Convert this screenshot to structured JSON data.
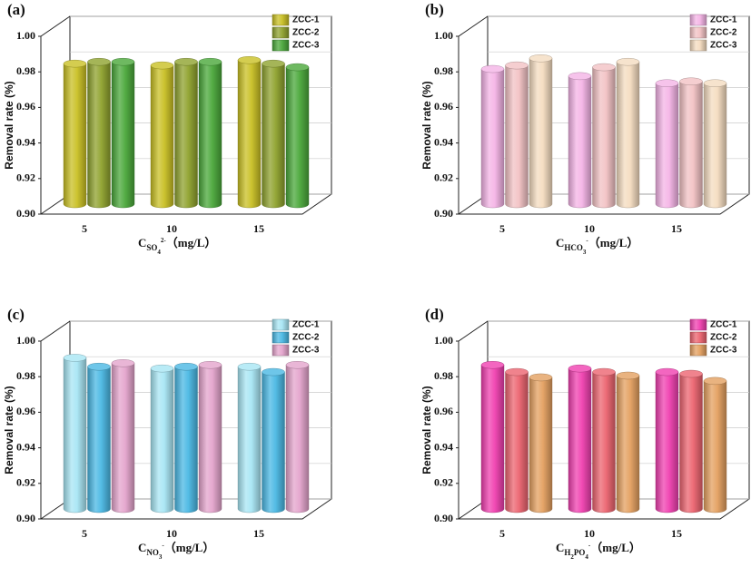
{
  "chart_data": [
    {
      "type": "bar",
      "panel_label": "(a)",
      "y_label": "Removal rate (%)",
      "x_label": [
        {
          "text": "C",
          "role": "base"
        },
        {
          "text": "SO",
          "role": "sub"
        },
        {
          "text": "4",
          "role": "subsub"
        },
        {
          "text": "2-",
          "role": "sup"
        },
        {
          "text": "（mg/L）",
          "role": "base"
        }
      ],
      "categories": [
        "5",
        "10",
        "15"
      ],
      "series": [
        {
          "name": "ZCC-1",
          "color": "#c9c024",
          "values": [
            0.979,
            0.978,
            0.981
          ]
        },
        {
          "name": "ZCC-2",
          "color": "#8fa22e",
          "values": [
            0.98,
            0.98,
            0.979
          ]
        },
        {
          "name": "ZCC-3",
          "color": "#4aa83a",
          "values": [
            0.98,
            0.98,
            0.977
          ]
        }
      ],
      "ylim": [
        0.9,
        1.0
      ],
      "yticks": [
        {
          "value": 0.9,
          "label": "0.90"
        },
        {
          "value": 0.92,
          "label": "0.92"
        },
        {
          "value": 0.94,
          "label": "0.94"
        },
        {
          "value": 0.96,
          "label": "0.96"
        },
        {
          "value": 0.98,
          "label": "0.98"
        },
        {
          "value": 1.0,
          "label": "1.00"
        }
      ],
      "grid": true
    },
    {
      "type": "bar",
      "panel_label": "(b)",
      "y_label": "Removal rate (%)",
      "x_label": [
        {
          "text": "C",
          "role": "base"
        },
        {
          "text": "HCO",
          "role": "sub"
        },
        {
          "text": "3",
          "role": "subsub"
        },
        {
          "text": "-",
          "role": "sup"
        },
        {
          "text": "（mg/L）",
          "role": "base"
        }
      ],
      "categories": [
        "5",
        "10",
        "15"
      ],
      "series": [
        {
          "name": "ZCC-1",
          "color": "#f4b4e6",
          "values": [
            0.976,
            0.972,
            0.968
          ]
        },
        {
          "name": "ZCC-2",
          "color": "#f2c2c4",
          "values": [
            0.978,
            0.977,
            0.969
          ]
        },
        {
          "name": "ZCC-3",
          "color": "#f4dcc0",
          "values": [
            0.982,
            0.98,
            0.968
          ]
        }
      ],
      "ylim": [
        0.9,
        1.0
      ],
      "yticks": [
        {
          "value": 0.9,
          "label": "0.90"
        },
        {
          "value": 0.92,
          "label": "0.92"
        },
        {
          "value": 0.94,
          "label": "0.94"
        },
        {
          "value": 0.96,
          "label": "0.96"
        },
        {
          "value": 0.98,
          "label": "0.98"
        },
        {
          "value": 1.0,
          "label": "1.00"
        }
      ],
      "grid": true
    },
    {
      "type": "bar",
      "panel_label": "(c)",
      "y_label": "Removal rate (%)",
      "x_label": [
        {
          "text": "C",
          "role": "base"
        },
        {
          "text": "NO",
          "role": "sub"
        },
        {
          "text": "3",
          "role": "subsub"
        },
        {
          "text": "-",
          "role": "sup"
        },
        {
          "text": "（mg/L）",
          "role": "base"
        }
      ],
      "categories": [
        "5",
        "10",
        "15"
      ],
      "series": [
        {
          "name": "ZCC-1",
          "color": "#a8e6f4",
          "values": [
            0.985,
            0.979,
            0.98
          ]
        },
        {
          "name": "ZCC-2",
          "color": "#4ab8e4",
          "values": [
            0.98,
            0.98,
            0.977
          ]
        },
        {
          "name": "ZCC-3",
          "color": "#e4a4cc",
          "values": [
            0.982,
            0.981,
            0.981
          ]
        }
      ],
      "ylim": [
        0.9,
        1.0
      ],
      "yticks": [
        {
          "value": 0.9,
          "label": "0.90"
        },
        {
          "value": 0.92,
          "label": "0.92"
        },
        {
          "value": 0.94,
          "label": "0.94"
        },
        {
          "value": 0.96,
          "label": "0.96"
        },
        {
          "value": 0.98,
          "label": "0.98"
        },
        {
          "value": 1.0,
          "label": "1.00"
        }
      ],
      "grid": true
    },
    {
      "type": "bar",
      "panel_label": "(d)",
      "y_label": "Removal rate (%)",
      "x_label": [
        {
          "text": "C",
          "role": "base"
        },
        {
          "text": "H",
          "role": "sub"
        },
        {
          "text": "2",
          "role": "subsub"
        },
        {
          "text": "PO",
          "role": "sub"
        },
        {
          "text": "4",
          "role": "subsub"
        },
        {
          "text": "-",
          "role": "sup"
        },
        {
          "text": "（mg/L）",
          "role": "base"
        }
      ],
      "categories": [
        "5",
        "10",
        "15"
      ],
      "series": [
        {
          "name": "ZCC-1",
          "color": "#f040b0",
          "values": [
            0.981,
            0.979,
            0.977
          ]
        },
        {
          "name": "ZCC-2",
          "color": "#ec6470",
          "values": [
            0.977,
            0.977,
            0.976
          ]
        },
        {
          "name": "ZCC-3",
          "color": "#e4a060",
          "values": [
            0.974,
            0.975,
            0.972
          ]
        }
      ],
      "ylim": [
        0.9,
        1.0
      ],
      "yticks": [
        {
          "value": 0.9,
          "label": "0.90"
        },
        {
          "value": 0.92,
          "label": "0.92"
        },
        {
          "value": 0.94,
          "label": "0.94"
        },
        {
          "value": 0.96,
          "label": "0.96"
        },
        {
          "value": 0.98,
          "label": "0.98"
        },
        {
          "value": 1.0,
          "label": "1.00"
        }
      ],
      "grid": true
    }
  ]
}
